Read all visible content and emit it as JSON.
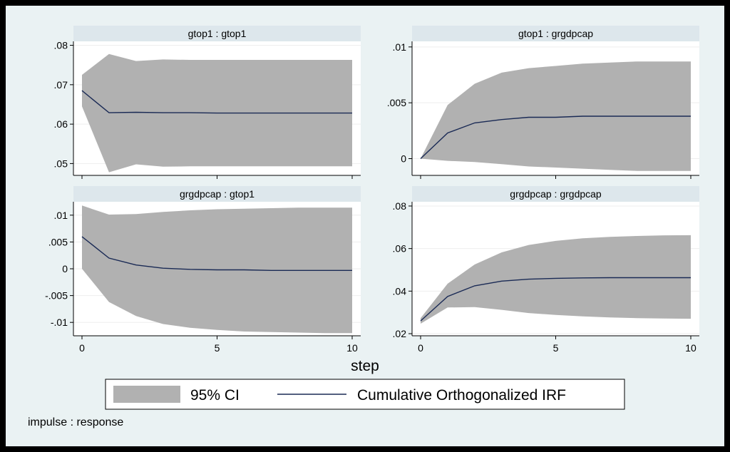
{
  "figure": {
    "x_title": "step",
    "note": "impulse : response",
    "legend": {
      "ci_label": "95% CI",
      "line_label": "Cumulative Orthogonalized IRF"
    },
    "colors": {
      "band": "#b1b1b1",
      "line": "#1a2a55",
      "panel_bg": "#ffffff",
      "strip": "#dde7ec"
    }
  },
  "chart_data": [
    {
      "type": "area",
      "title": "gtop1 : gtop1",
      "x": [
        0,
        1,
        2,
        3,
        4,
        5,
        6,
        7,
        8,
        9,
        10
      ],
      "ylim": [
        0.047,
        0.081
      ],
      "yticks": [
        0.05,
        0.06,
        0.07,
        0.08
      ],
      "ytick_labels": [
        ".05",
        ".06",
        ".07",
        ".08"
      ],
      "xticks": [
        0,
        5,
        10
      ],
      "xtick_labels": [
        "",
        "",
        ""
      ],
      "irf": [
        0.0685,
        0.0629,
        0.063,
        0.0629,
        0.0629,
        0.0628,
        0.0628,
        0.0628,
        0.0628,
        0.0628,
        0.0628
      ],
      "ci_lower": [
        0.0645,
        0.0478,
        0.0498,
        0.0492,
        0.0493,
        0.0493,
        0.0493,
        0.0493,
        0.0493,
        0.0493,
        0.0493
      ],
      "ci_upper": [
        0.0725,
        0.0778,
        0.076,
        0.0764,
        0.0763,
        0.0763,
        0.0763,
        0.0763,
        0.0763,
        0.0763,
        0.0763
      ]
    },
    {
      "type": "area",
      "title": "gtop1 : grgdpcap",
      "x": [
        0,
        1,
        2,
        3,
        4,
        5,
        6,
        7,
        8,
        9,
        10
      ],
      "ylim": [
        -0.0015,
        0.0105
      ],
      "yticks": [
        0,
        0.005,
        0.01
      ],
      "ytick_labels": [
        "0",
        ".005",
        ".01"
      ],
      "xticks": [
        0,
        5,
        10
      ],
      "xtick_labels": [
        "",
        "",
        ""
      ],
      "irf": [
        0,
        0.0023,
        0.0032,
        0.0035,
        0.0037,
        0.0037,
        0.0038,
        0.0038,
        0.0038,
        0.0038,
        0.0038
      ],
      "ci_lower": [
        0,
        -0.0002,
        -0.0003,
        -0.0005,
        -0.0007,
        -0.0008,
        -0.0009,
        -0.001,
        -0.0011,
        -0.0011,
        -0.0011
      ],
      "ci_upper": [
        0,
        0.0048,
        0.0067,
        0.0077,
        0.0081,
        0.0083,
        0.0085,
        0.0086,
        0.0087,
        0.0087,
        0.0087
      ]
    },
    {
      "type": "area",
      "title": "grgdpcap : gtop1",
      "x": [
        0,
        1,
        2,
        3,
        4,
        5,
        6,
        7,
        8,
        9,
        10
      ],
      "ylim": [
        -0.0125,
        0.0125
      ],
      "yticks": [
        -0.01,
        -0.005,
        0,
        0.005,
        0.01
      ],
      "ytick_labels": [
        "-.01",
        "-.005",
        "0",
        ".005",
        ".01"
      ],
      "xticks": [
        0,
        5,
        10
      ],
      "xtick_labels": [
        "0",
        "5",
        "10"
      ],
      "irf": [
        0.006,
        0.002,
        0.0007,
        0.0001,
        -0.0001,
        -0.0002,
        -0.0002,
        -0.0003,
        -0.0003,
        -0.0003,
        -0.0003
      ],
      "ci_lower": [
        0,
        -0.0062,
        -0.0088,
        -0.0103,
        -0.011,
        -0.0114,
        -0.0117,
        -0.0118,
        -0.0119,
        -0.012,
        -0.012
      ],
      "ci_upper": [
        0.0118,
        0.0101,
        0.0102,
        0.0106,
        0.0109,
        0.0111,
        0.0112,
        0.0113,
        0.0114,
        0.0114,
        0.0114
      ]
    },
    {
      "type": "area",
      "title": "grgdpcap : grgdpcap",
      "x": [
        0,
        1,
        2,
        3,
        4,
        5,
        6,
        7,
        8,
        9,
        10
      ],
      "ylim": [
        0.019,
        0.082
      ],
      "yticks": [
        0.02,
        0.04,
        0.06,
        0.08
      ],
      "ytick_labels": [
        ".02",
        ".04",
        ".06",
        ".08"
      ],
      "xticks": [
        0,
        5,
        10
      ],
      "xtick_labels": [
        "0",
        "5",
        "10"
      ],
      "irf": [
        0.026,
        0.0375,
        0.0425,
        0.0447,
        0.0456,
        0.046,
        0.0462,
        0.0463,
        0.0463,
        0.0463,
        0.0463
      ],
      "ci_lower": [
        0.0247,
        0.0323,
        0.0325,
        0.0312,
        0.0297,
        0.0288,
        0.0281,
        0.0276,
        0.0273,
        0.0271,
        0.027
      ],
      "ci_upper": [
        0.0273,
        0.0435,
        0.0525,
        0.0582,
        0.0617,
        0.0636,
        0.0648,
        0.0655,
        0.0659,
        0.0662,
        0.0663
      ]
    }
  ]
}
